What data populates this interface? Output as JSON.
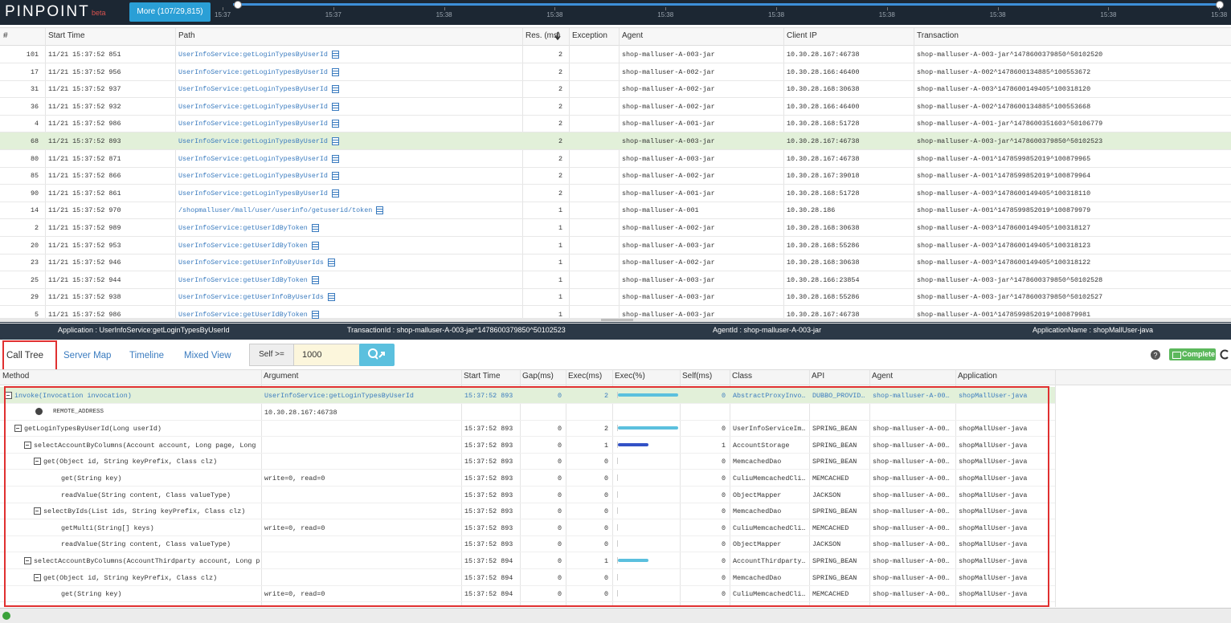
{
  "header": {
    "logo": "PINPOINT",
    "badge": "beta",
    "more_button": "More (107/29,815)",
    "timeline_labels": [
      "15:37",
      "15:37",
      "15:38",
      "15:38",
      "15:38",
      "15:38",
      "15:38",
      "15:38",
      "15:38",
      "15:38"
    ]
  },
  "transactions": {
    "columns": [
      "#",
      "Start Time",
      "Path",
      "Res. (ms)",
      "Exception",
      "Agent",
      "Client IP",
      "Transaction"
    ],
    "rows": [
      {
        "no": 101,
        "start_time": "11/21 15:37:52 851",
        "path": "UserInfoService:getLoginTypesByUserId",
        "res": 2,
        "agent": "shop-malluser-A-003-jar",
        "client_ip": "10.30.28.167:46738",
        "transaction": "shop-malluser-A-003-jar^1478600379850^50102520"
      },
      {
        "no": 17,
        "start_time": "11/21 15:37:52 956",
        "path": "UserInfoService:getLoginTypesByUserId",
        "res": 2,
        "agent": "shop-malluser-A-002-jar",
        "client_ip": "10.30.28.166:46400",
        "transaction": "shop-malluser-A-002^1478600134885^100553672"
      },
      {
        "no": 31,
        "start_time": "11/21 15:37:52 937",
        "path": "UserInfoService:getLoginTypesByUserId",
        "res": 2,
        "agent": "shop-malluser-A-002-jar",
        "client_ip": "10.30.28.168:30638",
        "transaction": "shop-malluser-A-003^1478600149405^100318120"
      },
      {
        "no": 36,
        "start_time": "11/21 15:37:52 932",
        "path": "UserInfoService:getLoginTypesByUserId",
        "res": 2,
        "agent": "shop-malluser-A-002-jar",
        "client_ip": "10.30.28.166:46400",
        "transaction": "shop-malluser-A-002^1478600134885^100553668"
      },
      {
        "no": 4,
        "start_time": "11/21 15:37:52 986",
        "path": "UserInfoService:getLoginTypesByUserId",
        "res": 2,
        "agent": "shop-malluser-A-001-jar",
        "client_ip": "10.30.28.168:51728",
        "transaction": "shop-malluser-A-001-jar^1478600351603^50106779"
      },
      {
        "no": 68,
        "start_time": "11/21 15:37:52 893",
        "path": "UserInfoService:getLoginTypesByUserId",
        "res": 2,
        "agent": "shop-malluser-A-003-jar",
        "client_ip": "10.30.28.167:46738",
        "transaction": "shop-malluser-A-003-jar^1478600379850^50102523",
        "selected": true
      },
      {
        "no": 80,
        "start_time": "11/21 15:37:52 871",
        "path": "UserInfoService:getLoginTypesByUserId",
        "res": 2,
        "agent": "shop-malluser-A-003-jar",
        "client_ip": "10.30.28.167:46738",
        "transaction": "shop-malluser-A-001^1478599852019^100879965"
      },
      {
        "no": 85,
        "start_time": "11/21 15:37:52 866",
        "path": "UserInfoService:getLoginTypesByUserId",
        "res": 2,
        "agent": "shop-malluser-A-002-jar",
        "client_ip": "10.30.28.167:39018",
        "transaction": "shop-malluser-A-001^1478599852019^100879964"
      },
      {
        "no": 90,
        "start_time": "11/21 15:37:52 861",
        "path": "UserInfoService:getLoginTypesByUserId",
        "res": 2,
        "agent": "shop-malluser-A-001-jar",
        "client_ip": "10.30.28.168:51728",
        "transaction": "shop-malluser-A-003^1478600149405^100318110"
      },
      {
        "no": 14,
        "start_time": "11/21 15:37:52 970",
        "path": "/shopmalluser/mall/user/userinfo/getuserid/token",
        "res": 1,
        "agent": "shop-malluser-A-001",
        "client_ip": "10.30.28.186",
        "transaction": "shop-malluser-A-001^1478599852019^100879979"
      },
      {
        "no": 2,
        "start_time": "11/21 15:37:52 989",
        "path": "UserInfoService:getUserIdByToken",
        "res": 1,
        "agent": "shop-malluser-A-002-jar",
        "client_ip": "10.30.28.168:30638",
        "transaction": "shop-malluser-A-003^1478600149405^100318127"
      },
      {
        "no": 20,
        "start_time": "11/21 15:37:52 953",
        "path": "UserInfoService:getUserIdByToken",
        "res": 1,
        "agent": "shop-malluser-A-003-jar",
        "client_ip": "10.30.28.168:55286",
        "transaction": "shop-malluser-A-003^1478600149405^100318123"
      },
      {
        "no": 23,
        "start_time": "11/21 15:37:52 946",
        "path": "UserInfoService:getUserInfoByUserIds",
        "res": 1,
        "agent": "shop-malluser-A-002-jar",
        "client_ip": "10.30.28.168:30638",
        "transaction": "shop-malluser-A-003^1478600149405^100318122"
      },
      {
        "no": 25,
        "start_time": "11/21 15:37:52 944",
        "path": "UserInfoService:getUserIdByToken",
        "res": 1,
        "agent": "shop-malluser-A-003-jar",
        "client_ip": "10.30.28.166:23854",
        "transaction": "shop-malluser-A-003-jar^1478600379850^50102528"
      },
      {
        "no": 29,
        "start_time": "11/21 15:37:52 938",
        "path": "UserInfoService:getUserInfoByUserIds",
        "res": 1,
        "agent": "shop-malluser-A-003-jar",
        "client_ip": "10.30.28.168:55286",
        "transaction": "shop-malluser-A-003-jar^1478600379850^50102527"
      },
      {
        "no": 5,
        "start_time": "11/21 15:37:52 986",
        "path": "UserInfoService:getUserIdByToken",
        "res": 1,
        "agent": "shop-malluser-A-003-jar",
        "client_ip": "10.30.28.167:46738",
        "transaction": "shop-malluser-A-001^1478599852019^100879981"
      }
    ]
  },
  "detail_bar": {
    "application": "Application : UserInfoService:getLoginTypesByUserId",
    "transaction_id": "TransactionId : shop-malluser-A-003-jar^1478600379850^50102523",
    "agent_id": "AgentId : shop-malluser-A-003-jar",
    "application_name": "ApplicationName : shopMallUser-java"
  },
  "tabs": [
    {
      "label": "Call Tree",
      "active": true
    },
    {
      "label": "Server Map"
    },
    {
      "label": "Timeline"
    },
    {
      "label": "Mixed View"
    }
  ],
  "filter": {
    "label": "Self >=",
    "value": 1000
  },
  "status": "Complete",
  "call_tree": {
    "columns": [
      "Method",
      "Argument",
      "Start Time",
      "Gap(ms)",
      "Exec(ms)",
      "Exec(%)",
      "Self(ms)",
      "Class",
      "API",
      "Agent",
      "Application"
    ],
    "rows": [
      {
        "level": 0,
        "expandable": true,
        "highlighted": true,
        "method": "invoke(Invocation invocation)",
        "argument": "UserInfoService:getLoginTypesByUserId",
        "start_time": "15:37:52 893",
        "gap": 0,
        "exec": 2,
        "exec_pct": 100,
        "self": 0,
        "class": "AbstractProxyInvo…",
        "api": "DUBBO_PROVID…",
        "agent": "shop-malluser-A-00…",
        "application": "shopMallUser-java"
      },
      {
        "level": 1,
        "info": true,
        "method": "REMOTE_ADDRESS",
        "argument": "10.30.28.167:46738"
      },
      {
        "level": 1,
        "expandable": true,
        "method": "getLoginTypesByUserId(Long userId)",
        "start_time": "15:37:52 893",
        "gap": 0,
        "exec": 2,
        "exec_pct": 100,
        "self": 0,
        "class": "UserInfoServiceIm…",
        "api": "SPRING_BEAN",
        "agent": "shop-malluser-A-00…",
        "application": "shopMallUser-java"
      },
      {
        "level": 2,
        "expandable": true,
        "method": "selectAccountByColumns(Account account, Long page, Long p",
        "start_time": "15:37:52 893",
        "gap": 0,
        "exec": 1,
        "exec_pct": 50,
        "self": 1,
        "class": "AccountStorage",
        "api": "SPRING_BEAN",
        "agent": "shop-malluser-A-00…",
        "application": "shopMallUser-java"
      },
      {
        "level": 3,
        "expandable": true,
        "method": "get(Object id, String keyPrefix, Class clz)",
        "start_time": "15:37:52 893",
        "gap": 0,
        "exec": 0,
        "exec_pct": 0,
        "self": 0,
        "class": "MemcachedDao",
        "api": "SPRING_BEAN",
        "agent": "shop-malluser-A-00…",
        "application": "shopMallUser-java"
      },
      {
        "level": 4,
        "method": "get(String key)",
        "argument": "write=0, read=0",
        "start_time": "15:37:52 893",
        "gap": 0,
        "exec": 0,
        "exec_pct": 0,
        "self": 0,
        "class": "CuliuMemcachedCli…",
        "api": "MEMCACHED",
        "agent": "shop-malluser-A-00…",
        "application": "shopMallUser-java"
      },
      {
        "level": 4,
        "method": "readValue(String content, Class valueType)",
        "start_time": "15:37:52 893",
        "gap": 0,
        "exec": 0,
        "exec_pct": 0,
        "self": 0,
        "class": "ObjectMapper",
        "api": "JACKSON",
        "agent": "shop-malluser-A-00…",
        "application": "shopMallUser-java"
      },
      {
        "level": 3,
        "expandable": true,
        "method": "selectByIds(List ids, String keyPrefix, Class clz)",
        "start_time": "15:37:52 893",
        "gap": 0,
        "exec": 0,
        "exec_pct": 0,
        "self": 0,
        "class": "MemcachedDao",
        "api": "SPRING_BEAN",
        "agent": "shop-malluser-A-00…",
        "application": "shopMallUser-java"
      },
      {
        "level": 4,
        "method": "getMulti(String[] keys)",
        "argument": "write=0, read=0",
        "start_time": "15:37:52 893",
        "gap": 0,
        "exec": 0,
        "exec_pct": 0,
        "self": 0,
        "class": "CuliuMemcachedCli…",
        "api": "MEMCACHED",
        "agent": "shop-malluser-A-00…",
        "application": "shopMallUser-java"
      },
      {
        "level": 4,
        "method": "readValue(String content, Class valueType)",
        "start_time": "15:37:52 893",
        "gap": 0,
        "exec": 0,
        "exec_pct": 0,
        "self": 0,
        "class": "ObjectMapper",
        "api": "JACKSON",
        "agent": "shop-malluser-A-00…",
        "application": "shopMallUser-java"
      },
      {
        "level": 2,
        "expandable": true,
        "method": "selectAccountByColumns(AccountThirdparty account, Long pa",
        "start_time": "15:37:52 894",
        "gap": 0,
        "exec": 1,
        "exec_pct": 50,
        "self": 0,
        "class": "AccountThirdparty…",
        "api": "SPRING_BEAN",
        "agent": "shop-malluser-A-00…",
        "application": "shopMallUser-java"
      },
      {
        "level": 3,
        "expandable": true,
        "method": "get(Object id, String keyPrefix, Class clz)",
        "start_time": "15:37:52 894",
        "gap": 0,
        "exec": 0,
        "exec_pct": 0,
        "self": 0,
        "class": "MemcachedDao",
        "api": "SPRING_BEAN",
        "agent": "shop-malluser-A-00…",
        "application": "shopMallUser-java"
      },
      {
        "level": 4,
        "method": "get(String key)",
        "argument": "write=0, read=0",
        "start_time": "15:37:52 894",
        "gap": 0,
        "exec": 0,
        "exec_pct": 0,
        "self": 0,
        "class": "CuliuMemcachedCli…",
        "api": "MEMCACHED",
        "agent": "shop-malluser-A-00…",
        "application": "shopMallUser-java"
      }
    ]
  }
}
